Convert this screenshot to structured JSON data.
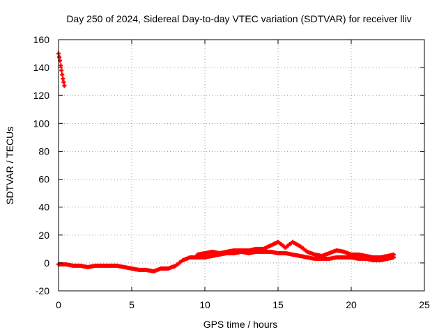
{
  "chart_data": {
    "type": "scatter",
    "title": "Day 250 of 2024, Sidereal Day-to-day VTEC variation (SDTVAR) for receiver lliv",
    "xlabel": "GPS time / hours",
    "ylabel": "SDTVAR / TECUs",
    "xlim": [
      0,
      25
    ],
    "ylim": [
      -20,
      160
    ],
    "xticks": [
      "0",
      "5",
      "10",
      "15",
      "20",
      "25"
    ],
    "yticks": [
      "-20",
      "0",
      "20",
      "40",
      "60",
      "80",
      "100",
      "120",
      "140",
      "160"
    ],
    "grid": true,
    "marker_color": "#ff0000",
    "series": [
      {
        "name": "SDTVAR",
        "x": [
          0.0,
          0.1,
          0.2,
          0.3,
          0.4,
          0.0,
          0.5,
          1.0,
          1.5,
          2.0,
          2.5,
          3.0,
          3.5,
          4.0,
          4.5,
          5.0,
          5.5,
          6.0,
          6.5,
          7.0,
          7.5,
          8.0,
          8.5,
          9.0,
          9.5,
          10.0,
          10.5,
          11.0,
          11.5,
          12.0,
          12.5,
          13.0,
          13.5,
          14.0,
          14.5,
          15.0,
          15.5,
          16.0,
          16.5,
          17.0,
          17.5,
          18.0,
          18.5,
          19.0,
          19.5,
          20.0,
          20.5,
          21.0,
          21.5,
          22.0,
          22.5,
          22.9,
          9.5,
          10.0,
          10.5,
          11.0,
          12.0,
          12.5,
          13.0,
          13.5,
          14.0,
          15.0,
          15.5,
          16.0,
          16.5,
          17.0,
          17.5,
          18.0,
          19.0,
          19.5,
          20.0,
          20.5,
          21.0,
          21.5,
          22.0,
          22.5,
          22.9
        ],
        "y": [
          150,
          145,
          138,
          132,
          127,
          -1,
          -1,
          -2,
          -2,
          -3,
          -2,
          -2,
          -2,
          -2,
          -3,
          -4,
          -5,
          -5,
          -6,
          -4,
          -4,
          -2,
          2,
          4,
          4,
          4,
          5,
          6,
          7,
          7,
          8,
          7,
          8,
          8,
          8,
          7,
          7,
          6,
          5,
          4,
          3,
          3,
          3,
          4,
          4,
          4,
          3,
          3,
          2,
          2,
          3,
          4,
          6,
          7,
          8,
          7,
          9,
          9,
          9,
          10,
          10,
          15,
          11,
          15,
          12,
          8,
          6,
          5,
          9,
          8,
          6,
          6,
          5,
          4,
          4,
          5,
          6
        ]
      }
    ]
  }
}
